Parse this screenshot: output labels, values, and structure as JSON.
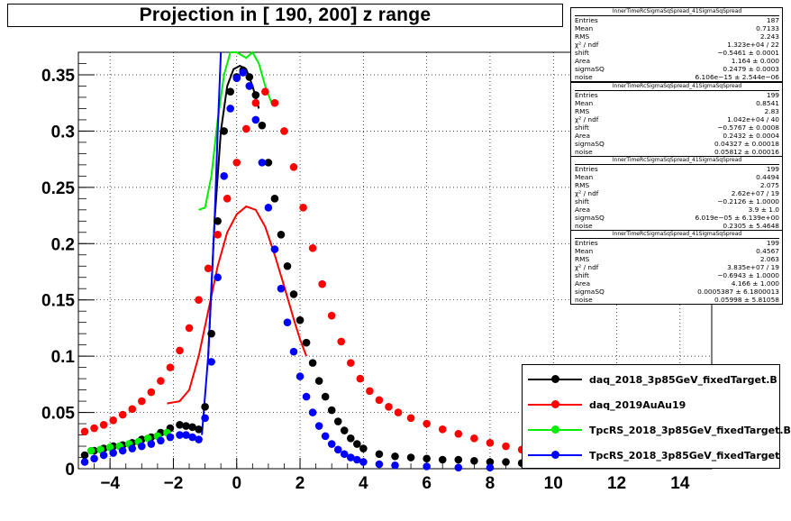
{
  "chart_data": {
    "type": "scatter",
    "title": "Projection in [ 190, 200] z range",
    "xlim": [
      -5,
      15
    ],
    "ylim": [
      0,
      0.37
    ],
    "x_ticks": [
      -4,
      -2,
      0,
      2,
      4,
      6,
      8,
      10,
      12,
      14
    ],
    "y_ticks": [
      0,
      0.05,
      0.1,
      0.15,
      0.2,
      0.25,
      0.3,
      0.35
    ],
    "x_tick_labels": [
      "−4",
      "−2",
      "0",
      "2",
      "4",
      "6",
      "8",
      "10",
      "12",
      "14"
    ],
    "y_tick_labels": [
      "0",
      "0.05",
      "0.1",
      "0.15",
      "0.2",
      "0.25",
      "0.3",
      "0.35"
    ],
    "grid": true,
    "legend_position": "bottom-right",
    "series": [
      {
        "name": "daq_2018_3p85GeV_fixedTarget.B",
        "color": "#000000",
        "points": [
          [
            -4.8,
            0.012
          ],
          [
            -4.5,
            0.016
          ],
          [
            -4.2,
            0.018
          ],
          [
            -3.9,
            0.02
          ],
          [
            -3.6,
            0.021
          ],
          [
            -3.3,
            0.023
          ],
          [
            -3.0,
            0.026
          ],
          [
            -2.7,
            0.028
          ],
          [
            -2.4,
            0.032
          ],
          [
            -2.1,
            0.036
          ],
          [
            -1.8,
            0.039
          ],
          [
            -1.6,
            0.038
          ],
          [
            -1.4,
            0.037
          ],
          [
            -1.2,
            0.035
          ],
          [
            -1.0,
            0.055
          ],
          [
            -0.8,
            0.12
          ],
          [
            -0.6,
            0.22
          ],
          [
            -0.4,
            0.3
          ],
          [
            -0.2,
            0.335
          ],
          [
            0.0,
            0.348
          ],
          [
            0.2,
            0.354
          ],
          [
            0.4,
            0.348
          ],
          [
            0.6,
            0.332
          ],
          [
            0.8,
            0.305
          ],
          [
            1.0,
            0.272
          ],
          [
            1.2,
            0.24
          ],
          [
            1.4,
            0.208
          ],
          [
            1.6,
            0.18
          ],
          [
            1.8,
            0.155
          ],
          [
            2.0,
            0.132
          ],
          [
            2.2,
            0.112
          ],
          [
            2.4,
            0.094
          ],
          [
            2.6,
            0.078
          ],
          [
            2.8,
            0.064
          ],
          [
            3.0,
            0.052
          ],
          [
            3.2,
            0.042
          ],
          [
            3.4,
            0.034
          ],
          [
            3.6,
            0.027
          ],
          [
            3.8,
            0.022
          ],
          [
            4.0,
            0.018
          ],
          [
            4.5,
            0.013
          ],
          [
            5.0,
            0.011
          ],
          [
            5.5,
            0.01
          ],
          [
            6.0,
            0.009
          ],
          [
            6.5,
            0.008
          ],
          [
            7.0,
            0.008
          ],
          [
            7.5,
            0.007
          ],
          [
            8.0,
            0.006
          ],
          [
            8.5,
            0.006
          ],
          [
            9.0,
            0.005
          ]
        ]
      },
      {
        "name": "daq_2019AuAu19",
        "color": "#ff0000",
        "points": [
          [
            -4.8,
            0.033
          ],
          [
            -4.5,
            0.036
          ],
          [
            -4.2,
            0.039
          ],
          [
            -3.9,
            0.043
          ],
          [
            -3.6,
            0.048
          ],
          [
            -3.3,
            0.053
          ],
          [
            -3.0,
            0.06
          ],
          [
            -2.7,
            0.068
          ],
          [
            -2.4,
            0.078
          ],
          [
            -2.1,
            0.09
          ],
          [
            -1.8,
            0.105
          ],
          [
            -1.5,
            0.125
          ],
          [
            -1.2,
            0.15
          ],
          [
            -0.9,
            0.178
          ],
          [
            -0.6,
            0.208
          ],
          [
            -0.3,
            0.24
          ],
          [
            0.0,
            0.272
          ],
          [
            0.3,
            0.302
          ],
          [
            0.6,
            0.325
          ],
          [
            0.9,
            0.335
          ],
          [
            1.2,
            0.325
          ],
          [
            1.5,
            0.3
          ],
          [
            1.8,
            0.268
          ],
          [
            2.1,
            0.232
          ],
          [
            2.4,
            0.196
          ],
          [
            2.7,
            0.164
          ],
          [
            3.0,
            0.136
          ],
          [
            3.3,
            0.113
          ],
          [
            3.6,
            0.094
          ],
          [
            3.9,
            0.08
          ],
          [
            4.2,
            0.069
          ],
          [
            4.5,
            0.061
          ],
          [
            4.8,
            0.055
          ],
          [
            5.1,
            0.05
          ],
          [
            5.5,
            0.045
          ],
          [
            6.0,
            0.04
          ],
          [
            6.5,
            0.035
          ],
          [
            7.0,
            0.031
          ],
          [
            7.5,
            0.027
          ],
          [
            8.0,
            0.023
          ],
          [
            8.5,
            0.02
          ],
          [
            9.0,
            0.017
          ]
        ]
      },
      {
        "name": "TpcRS_2018_3p85GeV_fixedTarget.B",
        "color": "#00ee00",
        "points": [
          [
            -4.6,
            0.016
          ],
          [
            -4.3,
            0.017
          ],
          [
            -4.0,
            0.019
          ],
          [
            -3.7,
            0.02
          ],
          [
            -3.4,
            0.022
          ],
          [
            -3.1,
            0.024
          ],
          [
            -2.8,
            0.027
          ],
          [
            -2.5,
            0.029
          ],
          [
            -2.2,
            0.032
          ]
        ]
      },
      {
        "name": "TpcRS_2018_3p85GeV_fixedTarget",
        "color": "#0000ff",
        "points": [
          [
            -4.8,
            0.006
          ],
          [
            -4.5,
            0.009
          ],
          [
            -4.2,
            0.012
          ],
          [
            -3.9,
            0.014
          ],
          [
            -3.6,
            0.016
          ],
          [
            -3.3,
            0.018
          ],
          [
            -3.0,
            0.02
          ],
          [
            -2.7,
            0.022
          ],
          [
            -2.4,
            0.025
          ],
          [
            -2.1,
            0.028
          ],
          [
            -1.8,
            0.03
          ],
          [
            -1.6,
            0.03
          ],
          [
            -1.4,
            0.028
          ],
          [
            -1.2,
            0.026
          ],
          [
            -1.0,
            0.045
          ],
          [
            -0.8,
            0.095
          ],
          [
            -0.6,
            0.17
          ],
          [
            -0.4,
            0.26
          ],
          [
            -0.2,
            0.32
          ],
          [
            0.0,
            0.347
          ],
          [
            0.2,
            0.352
          ],
          [
            0.4,
            0.34
          ],
          [
            0.6,
            0.31
          ],
          [
            0.8,
            0.272
          ],
          [
            1.0,
            0.232
          ],
          [
            1.2,
            0.195
          ],
          [
            1.4,
            0.16
          ],
          [
            1.6,
            0.13
          ],
          [
            1.8,
            0.104
          ],
          [
            2.0,
            0.082
          ],
          [
            2.2,
            0.064
          ],
          [
            2.4,
            0.05
          ],
          [
            2.6,
            0.038
          ],
          [
            2.8,
            0.029
          ],
          [
            3.0,
            0.022
          ],
          [
            3.2,
            0.017
          ],
          [
            3.4,
            0.013
          ],
          [
            3.6,
            0.01
          ],
          [
            3.8,
            0.008
          ],
          [
            4.0,
            0.006
          ],
          [
            4.5,
            0.004
          ],
          [
            5.0,
            0.003
          ],
          [
            6.0,
            0.002
          ],
          [
            7.0,
            0.001
          ],
          [
            8.0,
            0.001
          ]
        ]
      }
    ],
    "fit_curves": [
      {
        "color": "#ff0000",
        "points": [
          [
            -2.2,
            0.058
          ],
          [
            -1.8,
            0.06
          ],
          [
            -1.5,
            0.07
          ],
          [
            -1.2,
            0.1
          ],
          [
            -0.9,
            0.14
          ],
          [
            -0.6,
            0.18
          ],
          [
            -0.3,
            0.21
          ],
          [
            0.0,
            0.226
          ],
          [
            0.3,
            0.233
          ],
          [
            0.6,
            0.23
          ],
          [
            0.9,
            0.215
          ],
          [
            1.2,
            0.19
          ],
          [
            1.5,
            0.162
          ],
          [
            1.8,
            0.133
          ],
          [
            2.0,
            0.115
          ],
          [
            2.2,
            0.1
          ]
        ]
      },
      {
        "color": "#00ee00",
        "points": [
          [
            -1.2,
            0.23
          ],
          [
            -1.0,
            0.232
          ],
          [
            -0.8,
            0.26
          ],
          [
            -0.6,
            0.31
          ],
          [
            -0.4,
            0.35
          ],
          [
            -0.2,
            0.37
          ],
          [
            0.0,
            0.37
          ],
          [
            0.3,
            0.365
          ],
          [
            0.5,
            0.37
          ],
          [
            0.7,
            0.36
          ],
          [
            0.9,
            0.34
          ],
          [
            1.1,
            0.325
          ]
        ]
      },
      {
        "color": "#000000",
        "points": [
          [
            -0.9,
            0.1
          ],
          [
            -0.7,
            0.22
          ],
          [
            -0.5,
            0.3
          ],
          [
            -0.3,
            0.34
          ],
          [
            -0.1,
            0.355
          ],
          [
            0.1,
            0.358
          ],
          [
            0.3,
            0.355
          ],
          [
            0.5,
            0.34
          ],
          [
            0.7,
            0.32
          ]
        ]
      },
      {
        "color": "#0000ff",
        "points": [
          [
            -1.1,
            0.03
          ],
          [
            -0.9,
            0.1
          ],
          [
            -0.7,
            0.22
          ],
          [
            -0.6,
            0.3
          ],
          [
            -0.5,
            0.37
          ]
        ]
      }
    ]
  },
  "stats": [
    {
      "title": "InnerTimeRcSigmaSqSpread_41SigmaSqSpread",
      "rows": [
        [
          "Entries",
          "187"
        ],
        [
          "Mean",
          "0.7133"
        ],
        [
          "RMS",
          "2.243"
        ],
        [
          "χ² / ndf",
          "1.323e+04 / 22"
        ],
        [
          "shift",
          "−0.5461 ± 0.0001"
        ],
        [
          "Area",
          "1.164 ± 0.000"
        ],
        [
          "sigmaSQ",
          "0.2479 ± 0.0003"
        ],
        [
          "noise",
          "6.106e−15 ± 2.544e−06"
        ]
      ]
    },
    {
      "title": "InnerTimeRcSigmaSqSpread_41SigmaSqSpread",
      "rows": [
        [
          "Entries",
          "199"
        ],
        [
          "Mean",
          "0.8541"
        ],
        [
          "RMS",
          "2.83"
        ],
        [
          "χ² / ndf",
          "1.042e+04 / 40"
        ],
        [
          "shift",
          "−0.5767 ± 0.0008"
        ],
        [
          "Area",
          "0.2432 ± 0.0004"
        ],
        [
          "sigmaSQ",
          "0.04327 ± 0.00018"
        ],
        [
          "noise",
          "0.05812 ± 0.00016"
        ]
      ]
    },
    {
      "title": "InnerTimeRcSigmaSqSpread_41SigmaSqSpread",
      "rows": [
        [
          "Entries",
          "199"
        ],
        [
          "Mean",
          "0.4494"
        ],
        [
          "RMS",
          "2.075"
        ],
        [
          "χ² / ndf",
          "2.62e+07 / 19"
        ],
        [
          "shift",
          "−0.2126 ± 1.0000"
        ],
        [
          "Area",
          "3.9 ± 1.0"
        ],
        [
          "sigmaSQ",
          "6.019e−05 ± 6.139e+00"
        ],
        [
          "noise",
          "0.2305 ± 5.4648"
        ]
      ]
    },
    {
      "title": "InnerTimeRcSigmaSqSpread_41SigmaSqSpread",
      "rows": [
        [
          "Entries",
          "199"
        ],
        [
          "Mean",
          "0.4567"
        ],
        [
          "RMS",
          "2.063"
        ],
        [
          "χ² / ndf",
          "3.835e+07 / 19"
        ],
        [
          "shift",
          "−0.6943 ± 1.0000"
        ],
        [
          "Area",
          "4.166 ± 1.000"
        ],
        [
          "sigmaSQ",
          "0.0005387 ± 6.1800013"
        ],
        [
          "noise",
          "0.05998 ± 5.81058"
        ]
      ]
    }
  ],
  "legend": [
    {
      "label": "daq_2018_3p85GeV_fixedTarget.B",
      "color": "#000000"
    },
    {
      "label": "daq_2019AuAu19",
      "color": "#ff0000"
    },
    {
      "label": "TpcRS_2018_3p85GeV_fixedTarget.B",
      "color": "#00ee00"
    },
    {
      "label": "TpcRS_2018_3p85GeV_fixedTarget",
      "color": "#0000ff"
    }
  ]
}
